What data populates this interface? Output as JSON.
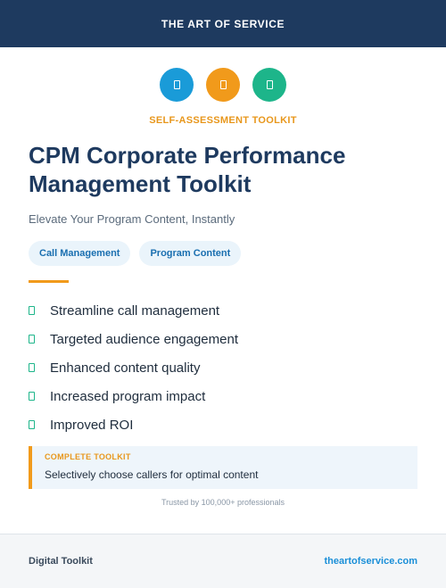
{
  "header": {
    "brand": "THE ART OF SERVICE"
  },
  "icons": [
    {
      "name": "document-icon",
      "color": "#1a9bd8"
    },
    {
      "name": "document-icon",
      "color": "#f19a1b"
    },
    {
      "name": "document-icon",
      "color": "#1db58a"
    }
  ],
  "kicker": "SELF-ASSESSMENT TOOLKIT",
  "title": "CPM Corporate Performance Management Toolkit",
  "subtitle": "Elevate Your Program Content, Instantly",
  "tags": [
    "Call Management",
    "Program Content"
  ],
  "features": [
    "Streamline call management",
    "Targeted audience engagement",
    "Enhanced content quality",
    "Increased program impact",
    "Improved ROI"
  ],
  "callout": {
    "title": "COMPLETE TOOLKIT",
    "text": "Selectively choose callers for optimal content"
  },
  "trusted": "Trusted by 100,000+ professionals",
  "footer": {
    "left": "Digital Toolkit",
    "right": "theartofservice.com"
  },
  "colors": {
    "navy": "#1e3a5f",
    "accent_orange": "#f19a1b",
    "accent_blue": "#1a9bd8",
    "accent_green": "#1db58a"
  }
}
